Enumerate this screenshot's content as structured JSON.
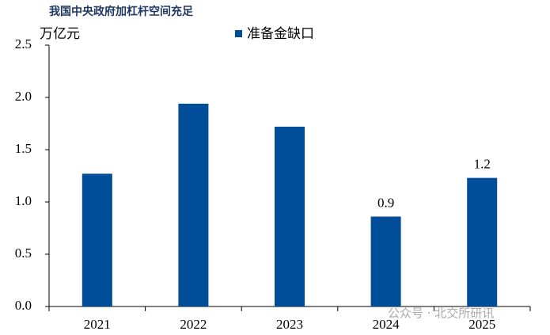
{
  "chart_data": {
    "type": "bar",
    "title": "我国中央政府加杠杆空间充足",
    "y_label": "万亿元",
    "categories": [
      "2021",
      "2022",
      "2023",
      "2024",
      "2025"
    ],
    "series": [
      {
        "name": "准备金缺口",
        "color": "#004d99",
        "values": [
          1.27,
          1.94,
          1.72,
          0.86,
          1.23
        ],
        "value_labels": [
          null,
          null,
          null,
          "0.9",
          "1.2"
        ]
      }
    ],
    "ylim": [
      0,
      2.5
    ],
    "yticks": [
      {
        "value": 0,
        "label": "0.0"
      },
      0.5,
      {
        "value": 1,
        "label": "1.0"
      },
      1.5,
      {
        "value": 2,
        "label": "2.0"
      },
      2.5
    ],
    "grid": false,
    "watermark": "公众号 · 北交所研讯"
  }
}
